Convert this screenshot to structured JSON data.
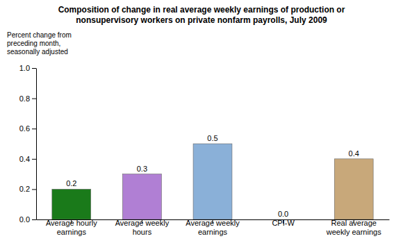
{
  "chart_data": {
    "type": "bar",
    "title": "Composition of change in real average weekly earnings of production or\nnonsupervisory workers on private nonfarm payrolls, July 2009",
    "ylabel": "Percent change from\npreceding month,\nseasonally adjusted",
    "categories": [
      "Average hourly\nearnings",
      "Average weekly\nhours",
      "Average weekly\nearnings",
      "CPI-W",
      "Real average\nweekly earnings"
    ],
    "values": [
      0.2,
      0.3,
      0.5,
      0.0,
      0.4
    ],
    "value_labels": [
      "0.2",
      "0.3",
      "0.5",
      "0.0",
      "0.4"
    ],
    "data_labels": true,
    "colors": [
      "#1a7a1a",
      "#b07fd4",
      "#8ab0d8",
      "#cccccc",
      "#c8a87a"
    ],
    "ylim": [
      0.0,
      1.0
    ],
    "yticks": [
      {
        "value": 0.0,
        "label": "0.0"
      },
      0.2,
      0.4,
      0.6,
      0.8,
      {
        "value": 1.0,
        "label": "1.0"
      }
    ],
    "grid": false
  }
}
